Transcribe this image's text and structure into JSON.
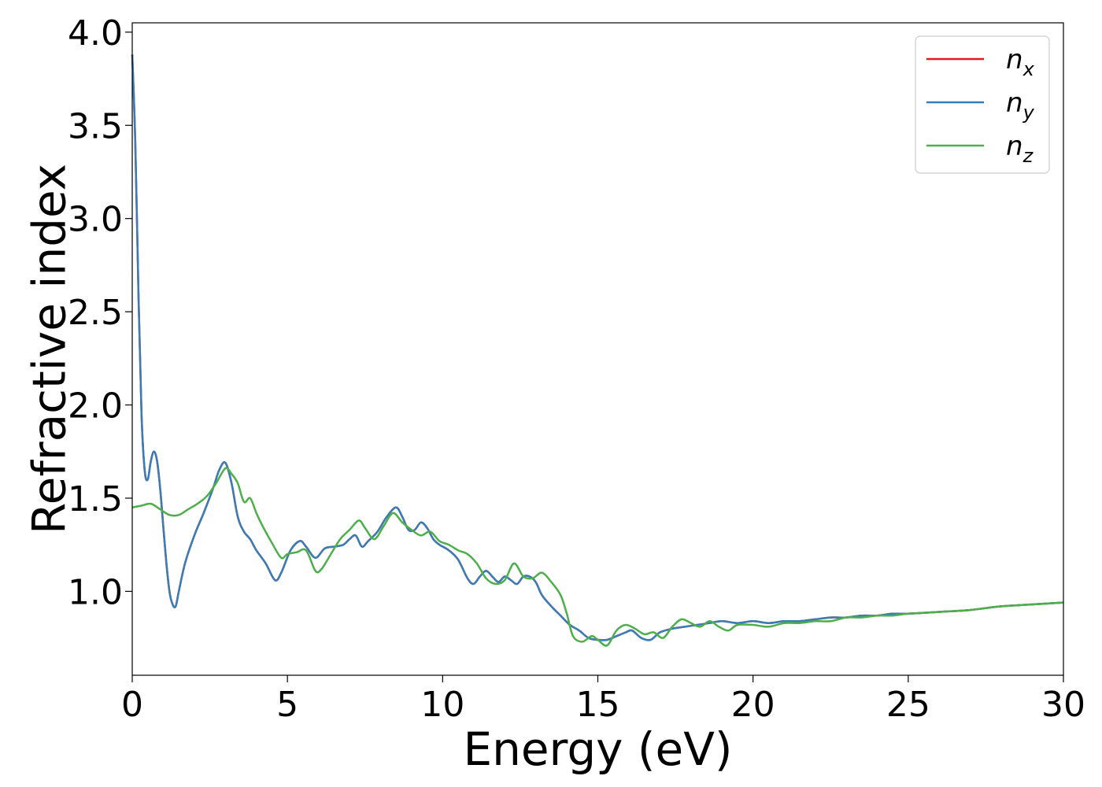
{
  "chart_data": {
    "type": "line",
    "title": "",
    "xlabel": "Energy (eV)",
    "ylabel": "Refractive index",
    "xlim": [
      0,
      30
    ],
    "ylim": [
      0.55,
      4.05
    ],
    "xticks": [
      "0",
      "5",
      "10",
      "15",
      "20",
      "25",
      "30"
    ],
    "xtick_values": [
      0,
      5,
      10,
      15,
      20,
      25,
      30
    ],
    "yticks": [
      "1.0",
      "1.5",
      "2.0",
      "2.5",
      "3.0",
      "3.5",
      "4.0"
    ],
    "ytick_values": [
      1.0,
      1.5,
      2.0,
      2.5,
      3.0,
      3.5,
      4.0
    ],
    "grid": false,
    "legend_position": "top-right",
    "series": [
      {
        "legend_base": "n",
        "legend_sub": "x",
        "color": "#e41a1c",
        "x": [
          0,
          0.1,
          0.2,
          0.3,
          0.4,
          0.5,
          0.6,
          0.7,
          0.8,
          0.9,
          1.0,
          1.1,
          1.2,
          1.3,
          1.4,
          1.5,
          1.7,
          2.0,
          2.3,
          2.6,
          2.8,
          3.0,
          3.2,
          3.4,
          3.6,
          3.8,
          4.0,
          4.3,
          4.6,
          4.8,
          5.1,
          5.4,
          5.6,
          5.9,
          6.2,
          6.5,
          6.8,
          7.0,
          7.2,
          7.4,
          7.6,
          7.9,
          8.2,
          8.5,
          8.7,
          8.9,
          9.1,
          9.3,
          9.5,
          9.7,
          9.9,
          10.2,
          10.5,
          10.8,
          11.0,
          11.2,
          11.4,
          11.6,
          11.8,
          12.0,
          12.2,
          12.4,
          12.6,
          12.8,
          13.0,
          13.2,
          13.5,
          13.8,
          14.1,
          14.4,
          14.7,
          15.0,
          15.3,
          15.6,
          15.9,
          16.1,
          16.4,
          16.7,
          17.0,
          17.4,
          17.8,
          18.2,
          18.6,
          19.0,
          19.5,
          20.0,
          20.5,
          21.0,
          21.5,
          22.0,
          22.5,
          23.0,
          23.5,
          24.0,
          24.5,
          25.0,
          26.0,
          27.0,
          28.0,
          29.0,
          30.0
        ],
        "values": [
          3.88,
          3.4,
          2.6,
          1.95,
          1.65,
          1.6,
          1.7,
          1.75,
          1.7,
          1.55,
          1.35,
          1.15,
          1.0,
          0.93,
          0.92,
          1.0,
          1.15,
          1.3,
          1.42,
          1.55,
          1.65,
          1.69,
          1.58,
          1.4,
          1.32,
          1.28,
          1.22,
          1.15,
          1.06,
          1.1,
          1.22,
          1.27,
          1.24,
          1.18,
          1.23,
          1.24,
          1.25,
          1.28,
          1.3,
          1.24,
          1.27,
          1.32,
          1.4,
          1.45,
          1.4,
          1.33,
          1.33,
          1.37,
          1.34,
          1.28,
          1.25,
          1.22,
          1.17,
          1.07,
          1.04,
          1.08,
          1.11,
          1.08,
          1.05,
          1.08,
          1.06,
          1.04,
          1.08,
          1.08,
          1.05,
          0.98,
          0.92,
          0.87,
          0.82,
          0.79,
          0.75,
          0.74,
          0.74,
          0.76,
          0.78,
          0.79,
          0.75,
          0.74,
          0.78,
          0.8,
          0.81,
          0.82,
          0.83,
          0.84,
          0.83,
          0.84,
          0.83,
          0.84,
          0.84,
          0.85,
          0.86,
          0.86,
          0.87,
          0.87,
          0.88,
          0.88,
          0.89,
          0.9,
          0.92,
          0.93,
          0.94
        ]
      },
      {
        "legend_base": "n",
        "legend_sub": "y",
        "color": "#377eb8",
        "x": [
          0,
          0.1,
          0.2,
          0.3,
          0.4,
          0.5,
          0.6,
          0.7,
          0.8,
          0.9,
          1.0,
          1.1,
          1.2,
          1.3,
          1.4,
          1.5,
          1.7,
          2.0,
          2.3,
          2.6,
          2.8,
          3.0,
          3.2,
          3.4,
          3.6,
          3.8,
          4.0,
          4.3,
          4.6,
          4.8,
          5.1,
          5.4,
          5.6,
          5.9,
          6.2,
          6.5,
          6.8,
          7.0,
          7.2,
          7.4,
          7.6,
          7.9,
          8.2,
          8.5,
          8.7,
          8.9,
          9.1,
          9.3,
          9.5,
          9.7,
          9.9,
          10.2,
          10.5,
          10.8,
          11.0,
          11.2,
          11.4,
          11.6,
          11.8,
          12.0,
          12.2,
          12.4,
          12.6,
          12.8,
          13.0,
          13.2,
          13.5,
          13.8,
          14.1,
          14.4,
          14.7,
          15.0,
          15.3,
          15.6,
          15.9,
          16.1,
          16.4,
          16.7,
          17.0,
          17.4,
          17.8,
          18.2,
          18.6,
          19.0,
          19.5,
          20.0,
          20.5,
          21.0,
          21.5,
          22.0,
          22.5,
          23.0,
          23.5,
          24.0,
          24.5,
          25.0,
          26.0,
          27.0,
          28.0,
          29.0,
          30.0
        ],
        "values": [
          3.88,
          3.4,
          2.6,
          1.95,
          1.65,
          1.6,
          1.7,
          1.75,
          1.7,
          1.55,
          1.35,
          1.15,
          1.0,
          0.93,
          0.92,
          1.0,
          1.15,
          1.3,
          1.42,
          1.55,
          1.65,
          1.69,
          1.58,
          1.4,
          1.32,
          1.28,
          1.22,
          1.15,
          1.06,
          1.1,
          1.22,
          1.27,
          1.24,
          1.18,
          1.23,
          1.24,
          1.25,
          1.28,
          1.3,
          1.24,
          1.27,
          1.32,
          1.4,
          1.45,
          1.4,
          1.33,
          1.33,
          1.37,
          1.34,
          1.28,
          1.25,
          1.22,
          1.17,
          1.07,
          1.04,
          1.08,
          1.11,
          1.08,
          1.05,
          1.08,
          1.06,
          1.04,
          1.08,
          1.08,
          1.05,
          0.98,
          0.92,
          0.87,
          0.82,
          0.79,
          0.75,
          0.74,
          0.74,
          0.76,
          0.78,
          0.79,
          0.75,
          0.74,
          0.78,
          0.8,
          0.81,
          0.82,
          0.83,
          0.84,
          0.83,
          0.84,
          0.83,
          0.84,
          0.84,
          0.85,
          0.86,
          0.86,
          0.87,
          0.87,
          0.88,
          0.88,
          0.89,
          0.9,
          0.92,
          0.93,
          0.94
        ]
      },
      {
        "legend_base": "n",
        "legend_sub": "z",
        "color": "#4daf4a",
        "x": [
          0,
          0.3,
          0.6,
          0.9,
          1.2,
          1.5,
          1.8,
          2.1,
          2.4,
          2.7,
          3.0,
          3.2,
          3.4,
          3.6,
          3.8,
          4.0,
          4.2,
          4.5,
          4.8,
          5.0,
          5.3,
          5.6,
          5.9,
          6.1,
          6.4,
          6.7,
          7.0,
          7.3,
          7.5,
          7.8,
          8.1,
          8.4,
          8.7,
          9.0,
          9.3,
          9.6,
          9.9,
          10.2,
          10.5,
          10.8,
          11.1,
          11.4,
          11.7,
          12.0,
          12.3,
          12.6,
          12.9,
          13.2,
          13.5,
          13.8,
          14.0,
          14.2,
          14.5,
          14.8,
          15.0,
          15.3,
          15.6,
          15.9,
          16.2,
          16.5,
          16.8,
          17.1,
          17.4,
          17.7,
          18.0,
          18.3,
          18.6,
          18.9,
          19.2,
          19.5,
          20.0,
          20.5,
          21.0,
          21.5,
          22.0,
          22.5,
          23.0,
          23.5,
          24.0,
          24.5,
          25.0,
          26.0,
          27.0,
          28.0,
          29.0,
          30.0
        ],
        "values": [
          1.45,
          1.46,
          1.47,
          1.44,
          1.41,
          1.41,
          1.44,
          1.47,
          1.51,
          1.58,
          1.66,
          1.63,
          1.58,
          1.48,
          1.5,
          1.42,
          1.35,
          1.26,
          1.18,
          1.2,
          1.21,
          1.22,
          1.11,
          1.12,
          1.2,
          1.28,
          1.33,
          1.38,
          1.34,
          1.28,
          1.35,
          1.42,
          1.37,
          1.33,
          1.3,
          1.32,
          1.27,
          1.25,
          1.22,
          1.2,
          1.15,
          1.07,
          1.04,
          1.06,
          1.15,
          1.08,
          1.07,
          1.1,
          1.05,
          0.98,
          0.88,
          0.76,
          0.73,
          0.76,
          0.74,
          0.71,
          0.79,
          0.82,
          0.8,
          0.77,
          0.78,
          0.75,
          0.81,
          0.85,
          0.83,
          0.81,
          0.84,
          0.81,
          0.79,
          0.82,
          0.82,
          0.81,
          0.83,
          0.83,
          0.84,
          0.84,
          0.86,
          0.86,
          0.87,
          0.87,
          0.88,
          0.89,
          0.9,
          0.92,
          0.93,
          0.94
        ]
      }
    ]
  }
}
